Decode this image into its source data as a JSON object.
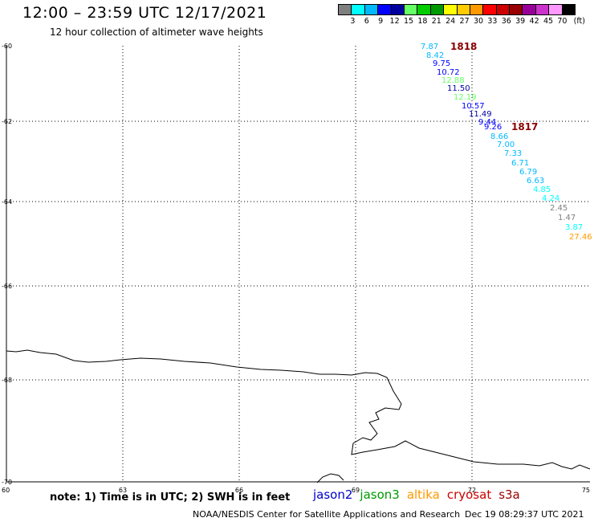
{
  "title": "12:00 – 23:59 UTC 12/17/2021",
  "subtitle": "12 hour collection of altimeter wave heights",
  "color_scale": {
    "colors": [
      "#7f7f7f",
      "#00ffff",
      "#00b8ff",
      "#0000ff",
      "#00009f",
      "#66ff66",
      "#00cc00",
      "#009900",
      "#ffff00",
      "#ffcc00",
      "#ff9900",
      "#ff0000",
      "#cc0000",
      "#990000",
      "#990099",
      "#cc33cc",
      "#ff99ff",
      "#000000"
    ],
    "labels": [
      "3",
      "6",
      "9",
      "12",
      "15",
      "18",
      "21",
      "24",
      "27",
      "30",
      "33",
      "36",
      "39",
      "42",
      "45",
      "70",
      "(ft)"
    ]
  },
  "axes": {
    "lat_labels": [
      "-60",
      "-62",
      "-64",
      "-66",
      "-68",
      "-70"
    ],
    "lon_labels": [
      "60",
      "63",
      "66",
      "69",
      "72",
      "75"
    ]
  },
  "passes": [
    {
      "id": "1818",
      "color": "#8b0000"
    },
    {
      "id": "1817",
      "color": "#8b0000"
    }
  ],
  "observations": [
    {
      "value": "7.87",
      "color": "#00b8ff"
    },
    {
      "value": "8.42",
      "color": "#00b8ff"
    },
    {
      "value": "9.75",
      "color": "#0000ff"
    },
    {
      "value": "10.72",
      "color": "#0000ff"
    },
    {
      "value": "12.88",
      "color": "#66ff66"
    },
    {
      "value": "11.50",
      "color": "#00009f"
    },
    {
      "value": "12.19",
      "color": "#66ff66"
    },
    {
      "value": "10.57",
      "color": "#0000ff"
    },
    {
      "value": "11.49",
      "color": "#00009f"
    },
    {
      "value": "9.44",
      "color": "#0000ff"
    },
    {
      "value": "9.26",
      "color": "#0000ff"
    },
    {
      "value": "8.66",
      "color": "#00b8ff"
    },
    {
      "value": "7.00",
      "color": "#00b8ff"
    },
    {
      "value": "7.33",
      "color": "#00b8ff"
    },
    {
      "value": "6.71",
      "color": "#00b8ff"
    },
    {
      "value": "6.79",
      "color": "#00b8ff"
    },
    {
      "value": "6.63",
      "color": "#00b8ff"
    },
    {
      "value": "4.85",
      "color": "#00ffff"
    },
    {
      "value": "4.24",
      "color": "#00ffff"
    },
    {
      "value": "2.45",
      "color": "#7f7f7f"
    },
    {
      "value": "1.47",
      "color": "#7f7f7f"
    },
    {
      "value": "3.87",
      "color": "#00ffff"
    },
    {
      "value": "27.46",
      "color": "#ff9900"
    }
  ],
  "footer": {
    "note": "note: 1) Time is in UTC; 2) SWH is in feet",
    "legend": [
      {
        "label": "jason2",
        "color": "#0000cc"
      },
      {
        "label": "jason3",
        "color": "#009900"
      },
      {
        "label": "altika",
        "color": "#ff9900"
      },
      {
        "label": "cryosat",
        "color": "#cc0000"
      },
      {
        "label": "s3a",
        "color": "#990000"
      }
    ],
    "agency": "NOAA/NESDIS Center for Satellite Applications and Research",
    "timestamp": "Dec 19 08:29:37 UTC 2021"
  }
}
